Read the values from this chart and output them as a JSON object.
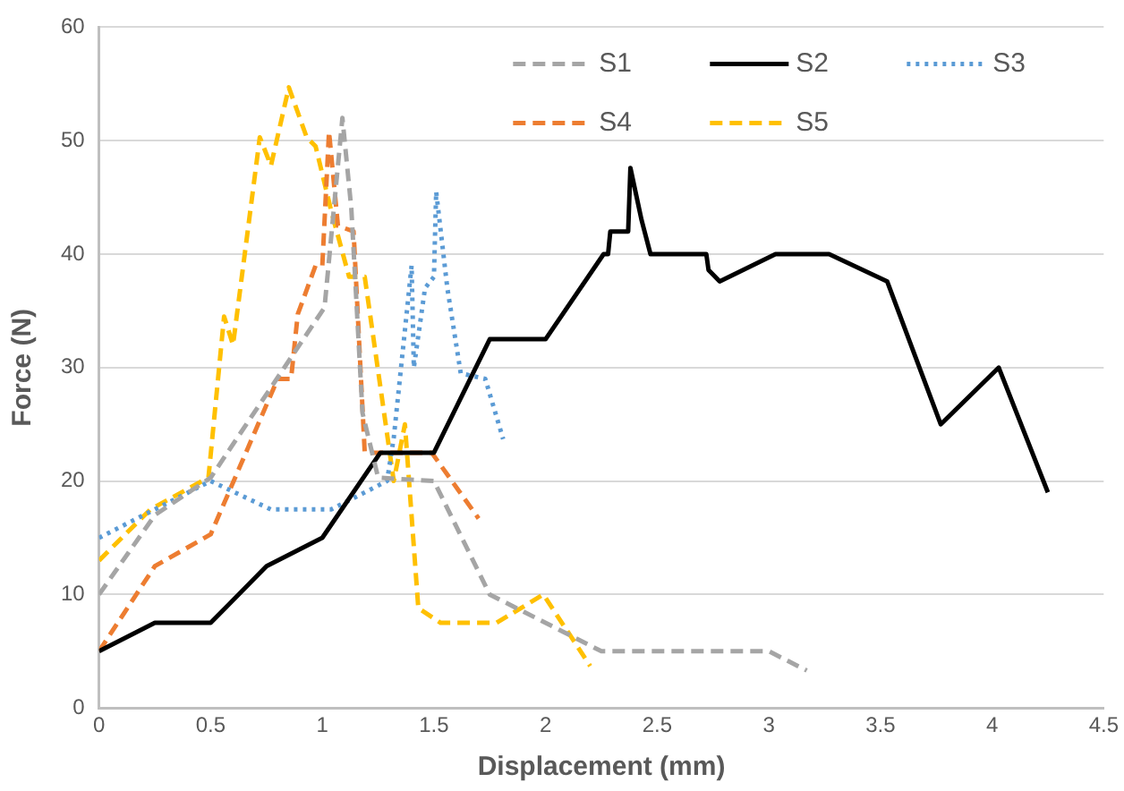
{
  "chart_data": {
    "type": "line",
    "xlabel": "Displacement (mm)",
    "ylabel": "Force (N)",
    "xlim": [
      0,
      4.5
    ],
    "xticks": [
      0,
      0.5,
      1,
      1.5,
      2,
      2.5,
      3,
      3.5,
      4,
      4.5
    ],
    "ylim": [
      0,
      60
    ],
    "yticks": [
      0,
      10,
      20,
      30,
      40,
      50,
      60
    ],
    "grid": "y",
    "legend": "top right",
    "marker": "none",
    "series": [
      {
        "name": "S1",
        "color": "#a5a5a5",
        "line_style": "dashed",
        "x": [
          0,
          0.25,
          0.5,
          1.01,
          1.09,
          1.13,
          1.18,
          1.25,
          1.5,
          1.75,
          2.25,
          3.0,
          3.17
        ],
        "values": [
          10,
          17,
          20.3,
          35.3,
          52,
          44,
          26,
          20.3,
          20,
          10,
          5,
          5,
          3.3
        ]
      },
      {
        "name": "S2",
        "color": "#000000",
        "line_style": "solid",
        "x": [
          0,
          0.25,
          0.5,
          0.75,
          1.0,
          1.26,
          1.5,
          1.75,
          2.0,
          2.26,
          2.28,
          2.29,
          2.37,
          2.38,
          2.43,
          2.47,
          2.72,
          2.73,
          2.78,
          3.03,
          3.27,
          3.53,
          3.77,
          4.03,
          4.25
        ],
        "values": [
          5,
          7.5,
          7.5,
          12.5,
          15,
          22.5,
          22.5,
          32.5,
          32.5,
          40,
          40,
          42,
          42,
          47.6,
          43,
          40,
          40,
          38.6,
          37.6,
          40,
          40,
          37.6,
          25,
          30,
          19
        ]
      },
      {
        "name": "S3",
        "color": "#5b9bd5",
        "line_style": "dotted",
        "x": [
          0,
          0.5,
          0.77,
          1.04,
          1.29,
          1.32,
          1.4,
          1.41,
          1.46,
          1.5,
          1.51,
          1.56,
          1.62,
          1.73,
          1.81
        ],
        "values": [
          15,
          20,
          17.5,
          17.5,
          20,
          23.8,
          39,
          30,
          37,
          38,
          45.5,
          37,
          29.5,
          29,
          23.7
        ]
      },
      {
        "name": "S4",
        "color": "#ed7d31",
        "line_style": "dashed",
        "x": [
          0,
          0.25,
          0.5,
          0.8,
          0.86,
          0.89,
          0.97,
          1.0,
          1.03,
          1.07,
          1.14,
          1.19,
          1.49,
          1.7
        ],
        "values": [
          5,
          12.5,
          15.3,
          29,
          29,
          34.7,
          39,
          39,
          50.8,
          42.5,
          42,
          22.5,
          22.5,
          16.7
        ]
      },
      {
        "name": "S5",
        "color": "#ffc000",
        "line_style": "dashed",
        "x": [
          0,
          0.23,
          0.49,
          0.56,
          0.6,
          0.72,
          0.77,
          0.85,
          0.93,
          0.97,
          1.04,
          1.12,
          1.19,
          1.32,
          1.37,
          1.43,
          1.53,
          1.78,
          1.99,
          2.2
        ],
        "values": [
          13,
          17.5,
          20.3,
          34.5,
          32,
          50.3,
          47.8,
          54.7,
          50.3,
          49.5,
          43.8,
          38,
          38,
          20,
          25,
          8.8,
          7.5,
          7.5,
          10,
          3.7
        ]
      }
    ]
  }
}
